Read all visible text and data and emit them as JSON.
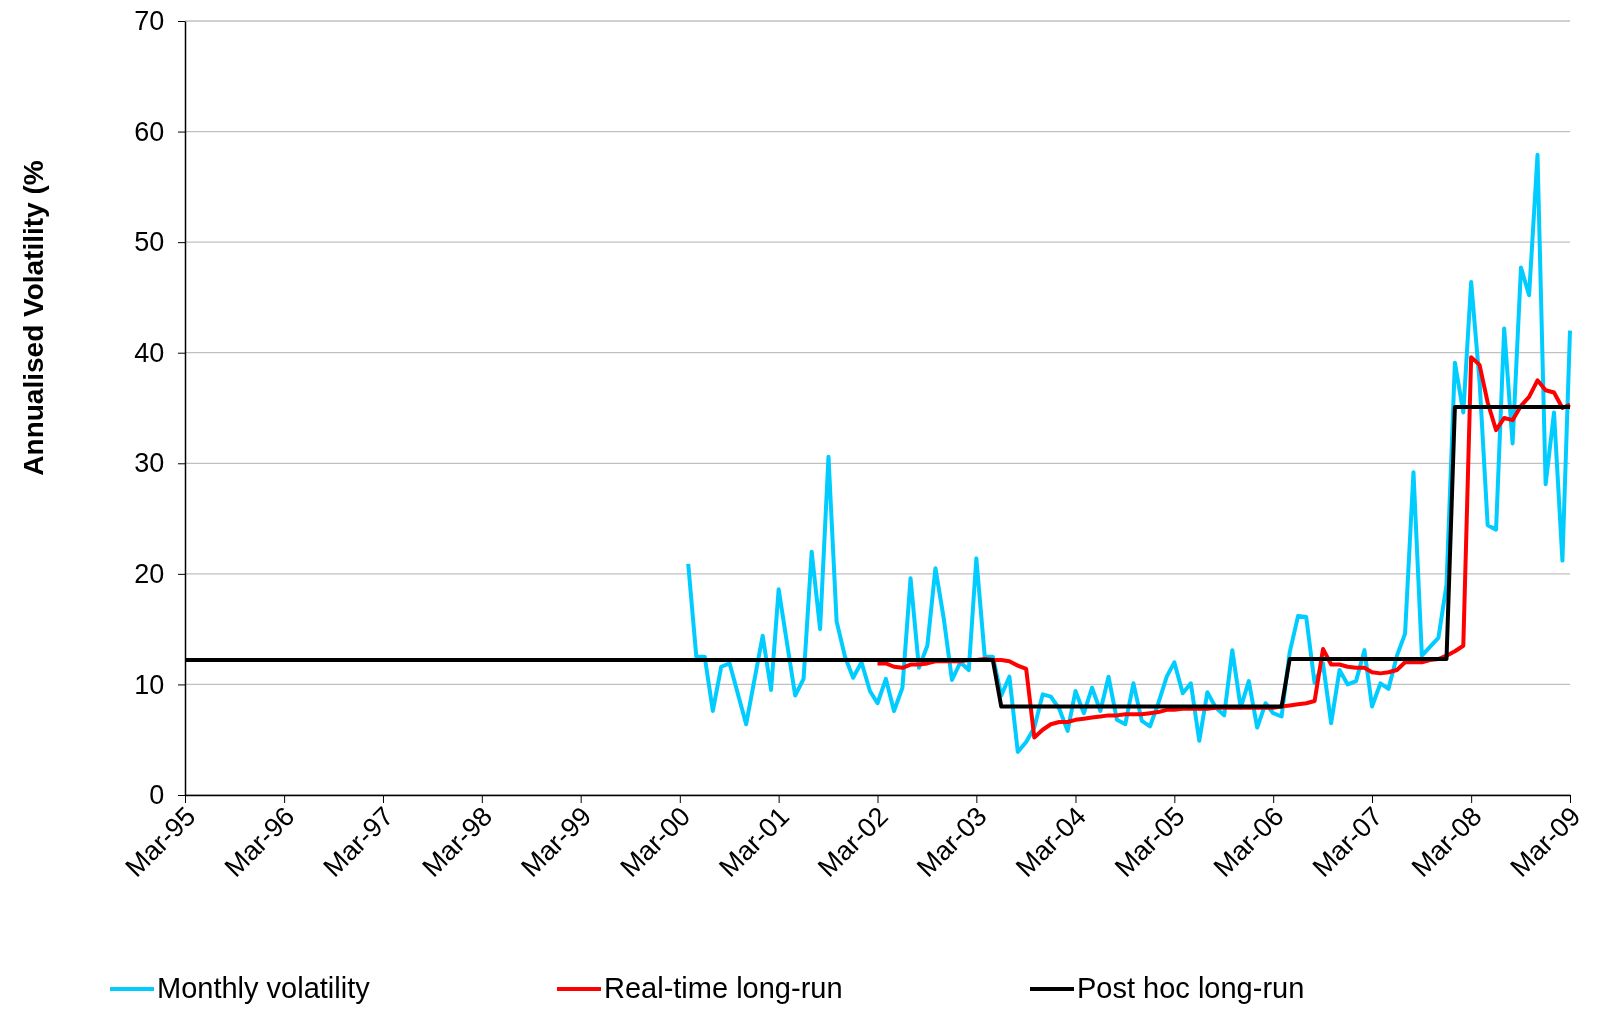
{
  "chart_data": {
    "type": "line",
    "ylabel": "Annualised Volatility (%",
    "xlim": [
      "1995-03",
      "2009-03"
    ],
    "ylim": [
      0,
      70
    ],
    "yticks": [
      0,
      10,
      20,
      30,
      40,
      50,
      60,
      70
    ],
    "xticks": [
      {
        "value": "1995-03",
        "label": "Mar-95"
      },
      {
        "value": "1996-03",
        "label": "Mar-96"
      },
      {
        "value": "1997-03",
        "label": "Mar-97"
      },
      {
        "value": "1998-03",
        "label": "Mar-98"
      },
      {
        "value": "1999-03",
        "label": "Mar-99"
      },
      {
        "value": "2000-03",
        "label": "Mar-00"
      },
      {
        "value": "2001-03",
        "label": "Mar-01"
      },
      {
        "value": "2002-03",
        "label": "Mar-02"
      },
      {
        "value": "2003-03",
        "label": "Mar-03"
      },
      {
        "value": "2004-03",
        "label": "Mar-04"
      },
      {
        "value": "2005-03",
        "label": "Mar-05"
      },
      {
        "value": "2006-03",
        "label": "Mar-06"
      },
      {
        "value": "2007-03",
        "label": "Mar-07"
      },
      {
        "value": "2008-03",
        "label": "Mar-08"
      },
      {
        "value": "2009-03",
        "label": "Mar-09"
      }
    ],
    "grid": "y",
    "legend": "bottom",
    "line_style": "solid",
    "marker": "none",
    "series": [
      {
        "name": "Monthly volatility",
        "color": "#00ccff",
        "x": [
          "2000-04",
          "2000-05",
          "2000-06",
          "2000-07",
          "2000-08",
          "2000-09",
          "2000-11",
          "2001-01",
          "2001-02",
          "2001-03",
          "2001-05",
          "2001-06",
          "2001-07",
          "2001-08",
          "2001-09",
          "2001-10",
          "2001-11",
          "2001-12",
          "2002-01",
          "2002-02",
          "2002-03",
          "2002-04",
          "2002-05",
          "2002-06",
          "2002-07",
          "2002-08",
          "2002-09",
          "2002-10",
          "2002-11",
          "2002-12",
          "2003-01",
          "2003-02",
          "2003-03",
          "2003-04",
          "2003-05",
          "2003-06",
          "2003-07",
          "2003-08",
          "2003-09",
          "2003-10",
          "2003-11",
          "2003-12",
          "2004-01",
          "2004-02",
          "2004-03",
          "2004-04",
          "2004-05",
          "2004-06",
          "2004-07",
          "2004-08",
          "2004-09",
          "2004-10",
          "2004-11",
          "2004-12",
          "2005-01",
          "2005-02",
          "2005-03",
          "2005-04",
          "2005-05",
          "2005-06",
          "2005-07",
          "2005-08",
          "2005-09",
          "2005-10",
          "2005-11",
          "2005-12",
          "2006-01",
          "2006-02",
          "2006-03",
          "2006-04",
          "2006-05",
          "2006-06",
          "2006-07",
          "2006-08",
          "2006-09",
          "2006-10",
          "2006-11",
          "2006-12",
          "2007-01",
          "2007-02",
          "2007-03",
          "2007-04",
          "2007-05",
          "2007-06",
          "2007-07",
          "2007-08",
          "2007-09",
          "2007-10",
          "2007-11",
          "2007-12",
          "2008-01",
          "2008-02",
          "2008-03",
          "2008-04",
          "2008-05",
          "2008-06",
          "2008-07",
          "2008-08",
          "2008-09",
          "2008-10",
          "2008-11",
          "2008-12",
          "2009-01",
          "2009-02",
          "2009-03"
        ],
        "values": [
          20.9,
          12.5,
          12.5,
          7.6,
          11.6,
          11.9,
          6.4,
          14.4,
          9.5,
          18.6,
          9.0,
          10.5,
          22.0,
          15.0,
          30.6,
          15.7,
          12.5,
          10.6,
          12.0,
          9.4,
          8.3,
          10.5,
          7.6,
          9.7,
          19.6,
          11.5,
          13.5,
          20.5,
          15.9,
          10.4,
          12.0,
          11.3,
          21.4,
          12.5,
          12.5,
          9.0,
          10.7,
          3.9,
          4.8,
          6.1,
          9.1,
          8.9,
          7.8,
          5.8,
          9.4,
          7.4,
          9.7,
          7.6,
          10.7,
          6.8,
          6.4,
          10.1,
          6.7,
          6.2,
          8.3,
          10.7,
          12.0,
          9.2,
          10.1,
          4.9,
          9.3,
          7.9,
          7.2,
          13.1,
          7.9,
          10.3,
          6.1,
          8.3,
          7.4,
          7.1,
          12.9,
          16.2,
          16.1,
          10.1,
          11.9,
          6.5,
          11.3,
          10.0,
          10.3,
          13.1,
          8.0,
          10.1,
          9.6,
          12.6,
          14.6,
          29.2,
          12.6,
          13.4,
          14.2,
          19.0,
          39.1,
          34.6,
          46.4,
          37.4,
          24.4,
          24.0,
          42.2,
          31.8,
          47.7,
          45.2,
          57.9,
          28.1,
          34.6,
          21.2,
          42.0
        ]
      },
      {
        "name": "Real-time long-run",
        "color": "#ff0000",
        "x": [
          "2002-03",
          "2002-04",
          "2002-05",
          "2002-06",
          "2002-07",
          "2002-08",
          "2002-09",
          "2002-10",
          "2002-11",
          "2002-12",
          "2003-01",
          "2003-02",
          "2003-03",
          "2003-04",
          "2003-05",
          "2003-06",
          "2003-07",
          "2003-08",
          "2003-09",
          "2003-10",
          "2003-11",
          "2003-12",
          "2004-01",
          "2004-02",
          "2004-03",
          "2004-04",
          "2004-05",
          "2004-06",
          "2004-07",
          "2004-08",
          "2004-09",
          "2004-10",
          "2004-11",
          "2004-12",
          "2005-01",
          "2005-02",
          "2005-03",
          "2005-04",
          "2005-05",
          "2005-06",
          "2005-07",
          "2005-08",
          "2005-09",
          "2005-10",
          "2005-11",
          "2005-12",
          "2006-01",
          "2006-02",
          "2006-03",
          "2006-04",
          "2006-05",
          "2006-06",
          "2006-07",
          "2006-08",
          "2006-09",
          "2006-10",
          "2006-11",
          "2006-12",
          "2007-01",
          "2007-02",
          "2007-03",
          "2007-04",
          "2007-05",
          "2007-06",
          "2007-07",
          "2007-08",
          "2007-09",
          "2007-10",
          "2007-11",
          "2007-12",
          "2008-01",
          "2008-02",
          "2008-03",
          "2008-04",
          "2008-05",
          "2008-06",
          "2008-07",
          "2008-08",
          "2008-09",
          "2008-10",
          "2008-11",
          "2008-12",
          "2009-01",
          "2009-02",
          "2009-03"
        ],
        "values": [
          11.9,
          11.9,
          11.6,
          11.5,
          11.8,
          11.8,
          11.9,
          12.1,
          12.1,
          12.1,
          12.1,
          12.2,
          12.2,
          12.3,
          12.2,
          12.2,
          12.1,
          11.7,
          11.4,
          5.2,
          5.9,
          6.4,
          6.6,
          6.6,
          6.8,
          6.9,
          7.0,
          7.1,
          7.2,
          7.2,
          7.3,
          7.3,
          7.3,
          7.4,
          7.5,
          7.7,
          7.7,
          7.8,
          7.8,
          7.8,
          7.8,
          7.9,
          7.9,
          7.9,
          7.9,
          7.9,
          7.9,
          7.9,
          7.9,
          8.0,
          8.1,
          8.2,
          8.3,
          8.5,
          13.2,
          11.8,
          11.8,
          11.6,
          11.5,
          11.5,
          11.1,
          11.0,
          11.1,
          11.3,
          12.0,
          12.0,
          12.0,
          12.2,
          12.3,
          12.6,
          13.0,
          13.5,
          39.6,
          38.9,
          35.5,
          33.0,
          34.1,
          33.9,
          35.2,
          36.0,
          37.5,
          36.6,
          36.4,
          35.0,
          35.3
        ]
      },
      {
        "name": "Post hoc long-run",
        "color": "#000000",
        "x": [
          "1995-03",
          "2003-05",
          "2003-06",
          "2006-04",
          "2006-05",
          "2007-12",
          "2008-01",
          "2009-03"
        ],
        "values": [
          12.2,
          12.2,
          8.0,
          8.0,
          12.3,
          12.3,
          35.1,
          35.1
        ]
      }
    ]
  }
}
